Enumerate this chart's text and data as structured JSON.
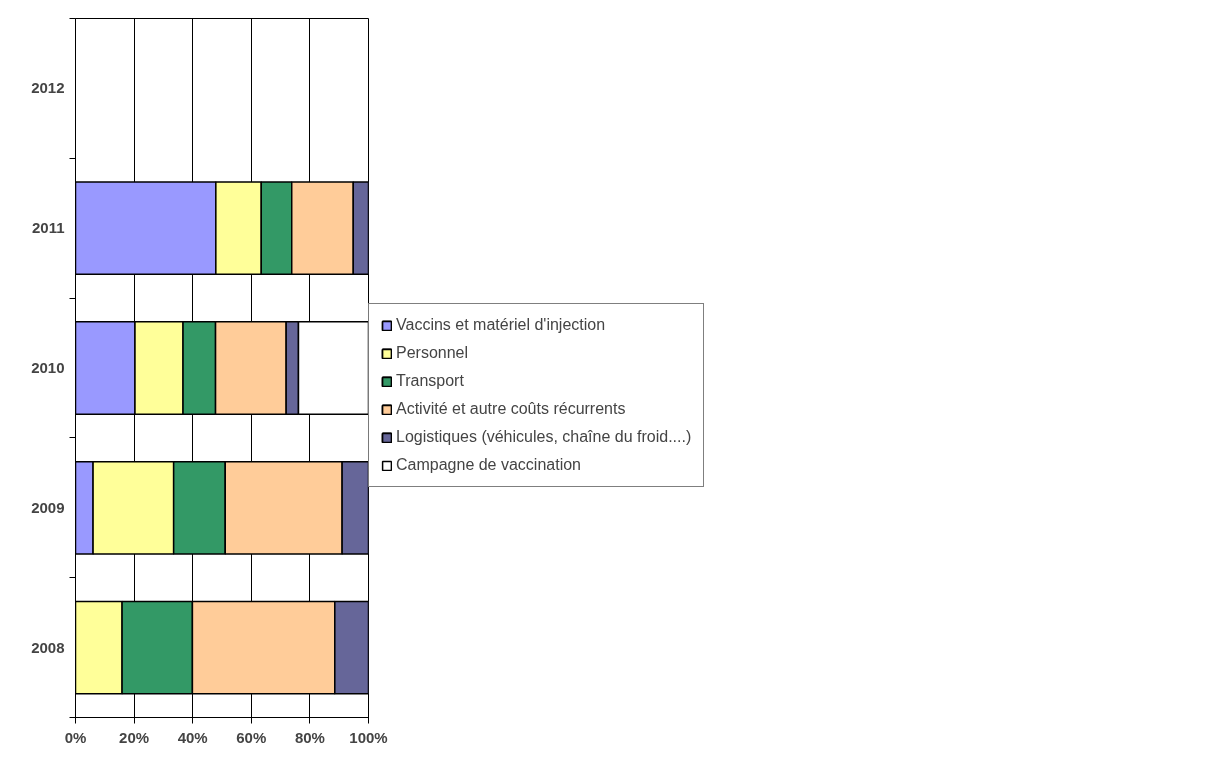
{
  "chart_data": {
    "type": "bar",
    "orientation": "horizontal",
    "stacked": true,
    "categories": [
      "2012",
      "2011",
      "2010",
      "2009",
      "2008"
    ],
    "series": [
      {
        "name": "Vaccins et matériel d'injection",
        "color": "#9999ff",
        "values": [
          null,
          47.9,
          20.3,
          6.0,
          null
        ]
      },
      {
        "name": "Personnel",
        "color": "#ffff99",
        "values": [
          null,
          15.5,
          16.4,
          27.5,
          15.9
        ]
      },
      {
        "name": "Transport",
        "color": "#339966",
        "values": [
          null,
          10.4,
          11.1,
          17.6,
          24.0
        ]
      },
      {
        "name": "Activité et autre coûts récurrents",
        "color": "#ffcc99",
        "values": [
          null,
          21.0,
          24.1,
          39.9,
          48.6
        ]
      },
      {
        "name": "Logistiques (véhicules, chaîne du froid....)",
        "color": "#666699",
        "values": [
          null,
          5.2,
          4.2,
          9.0,
          11.5
        ]
      },
      {
        "name": "Campagne de vaccination",
        "color": "#ffffff",
        "values": [
          null,
          null,
          23.9,
          null,
          null
        ]
      }
    ],
    "xlim": [
      0,
      100
    ],
    "xticks": [
      {
        "value": 0,
        "label": "0%"
      },
      {
        "value": 20,
        "label": "20%"
      },
      {
        "value": 40,
        "label": "40%"
      },
      {
        "value": 60,
        "label": "60%"
      },
      {
        "value": 80,
        "label": "80%"
      },
      {
        "value": 100,
        "label": "100%"
      }
    ],
    "grid": "x",
    "legend": "right"
  }
}
